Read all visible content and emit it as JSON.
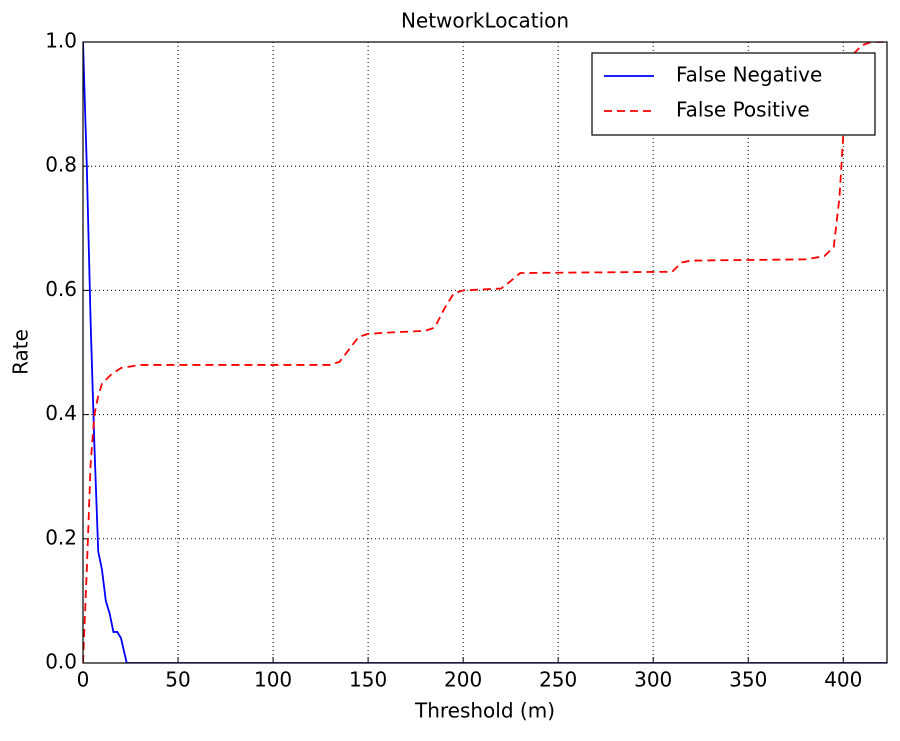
{
  "chart_data": {
    "type": "line",
    "title": "NetworkLocation",
    "x_label": "Threshold (m)",
    "y_label": "Rate",
    "xlim": [
      0,
      423
    ],
    "ylim": [
      0,
      1
    ],
    "xticks": [
      0,
      50,
      100,
      150,
      200,
      250,
      300,
      350,
      400
    ],
    "yticks": [
      {
        "value": 0,
        "label": "0.0"
      },
      {
        "value": 0.2,
        "label": "0.2"
      },
      {
        "value": 0.4,
        "label": "0.4"
      },
      {
        "value": 0.6,
        "label": "0.6"
      },
      {
        "value": 0.8,
        "label": "0.8"
      },
      {
        "value": 1,
        "label": "1.0"
      }
    ],
    "grid": true,
    "legend": "upper right",
    "series": [
      {
        "name": "False Negative",
        "color": "#0000ff",
        "dash": false,
        "x": [
          0,
          2,
          4,
          6,
          8,
          10,
          12,
          14,
          16,
          18,
          20,
          23,
          423
        ],
        "values": [
          1.0,
          0.8,
          0.55,
          0.35,
          0.18,
          0.15,
          0.1,
          0.08,
          0.05,
          0.05,
          0.04,
          0.0,
          0.0
        ]
      },
      {
        "name": "False Positive",
        "color": "#ff0000",
        "dash": true,
        "x": [
          0,
          2,
          4,
          6,
          8,
          10,
          15,
          20,
          30,
          130,
          135,
          140,
          145,
          150,
          160,
          180,
          185,
          190,
          195,
          200,
          220,
          225,
          230,
          310,
          315,
          320,
          380,
          390,
          395,
          398,
          400,
          402,
          405,
          410,
          415,
          423
        ],
        "values": [
          0.0,
          0.15,
          0.32,
          0.4,
          0.43,
          0.45,
          0.465,
          0.475,
          0.48,
          0.48,
          0.485,
          0.505,
          0.525,
          0.53,
          0.532,
          0.535,
          0.54,
          0.57,
          0.595,
          0.6,
          0.603,
          0.615,
          0.628,
          0.63,
          0.645,
          0.648,
          0.65,
          0.655,
          0.67,
          0.75,
          0.85,
          0.92,
          0.98,
          0.995,
          1.0,
          1.0
        ]
      }
    ]
  }
}
